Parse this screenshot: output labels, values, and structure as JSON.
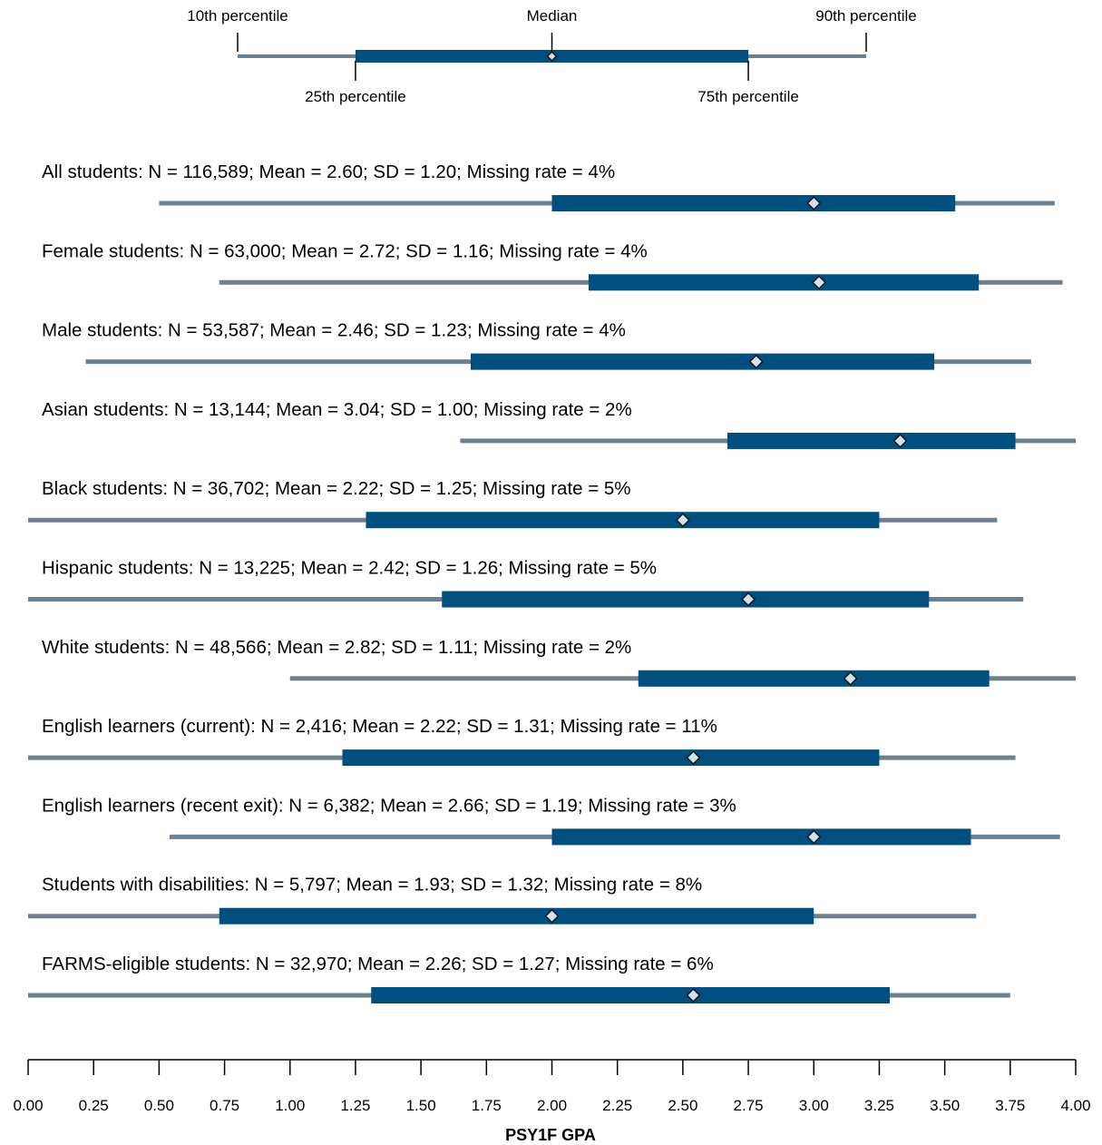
{
  "chart_data": {
    "type": "box",
    "xlabel": "PSY1F GPA",
    "xlim": [
      0,
      4
    ],
    "xticks": [
      "0.00",
      "0.25",
      "0.50",
      "0.75",
      "1.00",
      "1.25",
      "1.50",
      "1.75",
      "2.00",
      "2.25",
      "2.50",
      "2.75",
      "3.00",
      "3.25",
      "3.50",
      "3.75",
      "4.00"
    ],
    "legend": {
      "labels": {
        "p10": "10th percentile",
        "p25": "25th percentile",
        "median": "Median",
        "p75": "75th percentile",
        "p90": "90th percentile"
      },
      "example": {
        "p10": 0.8,
        "p25": 1.25,
        "median": 2.0,
        "p75": 2.75,
        "p90": 3.2
      }
    },
    "colors": {
      "whisker": "#6e7f8d",
      "box": "#004f7f",
      "marker": "#cfe3f2",
      "marker_edge": "#1a1a1a"
    },
    "series": [
      {
        "label": "All students: N = 116,589; Mean = 2.60; SD = 1.20; Missing rate = 4%",
        "p10": 0.5,
        "p25": 2.0,
        "median": 3.0,
        "p75": 3.54,
        "p90": 3.92
      },
      {
        "label": "Female students: N = 63,000; Mean = 2.72; SD = 1.16; Missing rate = 4%",
        "p10": 0.73,
        "p25": 2.14,
        "median": 3.02,
        "p75": 3.63,
        "p90": 3.95
      },
      {
        "label": "Male students: N = 53,587; Mean = 2.46; SD = 1.23; Missing rate = 4%",
        "p10": 0.22,
        "p25": 1.69,
        "median": 2.78,
        "p75": 3.46,
        "p90": 3.83
      },
      {
        "label": "Asian students: N = 13,144; Mean = 3.04; SD = 1.00; Missing rate = 2%",
        "p10": 1.65,
        "p25": 2.67,
        "median": 3.33,
        "p75": 3.77,
        "p90": 4.0
      },
      {
        "label": "Black students: N = 36,702; Mean = 2.22; SD = 1.25; Missing rate = 5%",
        "p10": 0.0,
        "p25": 1.29,
        "median": 2.5,
        "p75": 3.25,
        "p90": 3.7
      },
      {
        "label": "Hispanic students: N = 13,225; Mean = 2.42; SD = 1.26; Missing rate = 5%",
        "p10": 0.0,
        "p25": 1.58,
        "median": 2.75,
        "p75": 3.44,
        "p90": 3.8
      },
      {
        "label": "White students: N = 48,566; Mean = 2.82; SD = 1.11; Missing rate = 2%",
        "p10": 1.0,
        "p25": 2.33,
        "median": 3.14,
        "p75": 3.67,
        "p90": 4.0
      },
      {
        "label": "English learners (current): N = 2,416; Mean = 2.22; SD = 1.31; Missing rate = 11%",
        "p10": 0.0,
        "p25": 1.2,
        "median": 2.54,
        "p75": 3.25,
        "p90": 3.77
      },
      {
        "label": "English learners (recent exit): N = 6,382; Mean = 2.66; SD = 1.19; Missing rate = 3%",
        "p10": 0.54,
        "p25": 2.0,
        "median": 3.0,
        "p75": 3.6,
        "p90": 3.94
      },
      {
        "label": "Students with disabilities: N = 5,797; Mean = 1.93; SD = 1.32; Missing rate = 8%",
        "p10": 0.0,
        "p25": 0.73,
        "median": 2.0,
        "p75": 3.0,
        "p90": 3.62
      },
      {
        "label": "FARMS-eligible students: N = 32,970; Mean = 2.26; SD = 1.27; Missing rate = 6%",
        "p10": 0.0,
        "p25": 1.31,
        "median": 2.54,
        "p75": 3.29,
        "p90": 3.75
      }
    ]
  }
}
